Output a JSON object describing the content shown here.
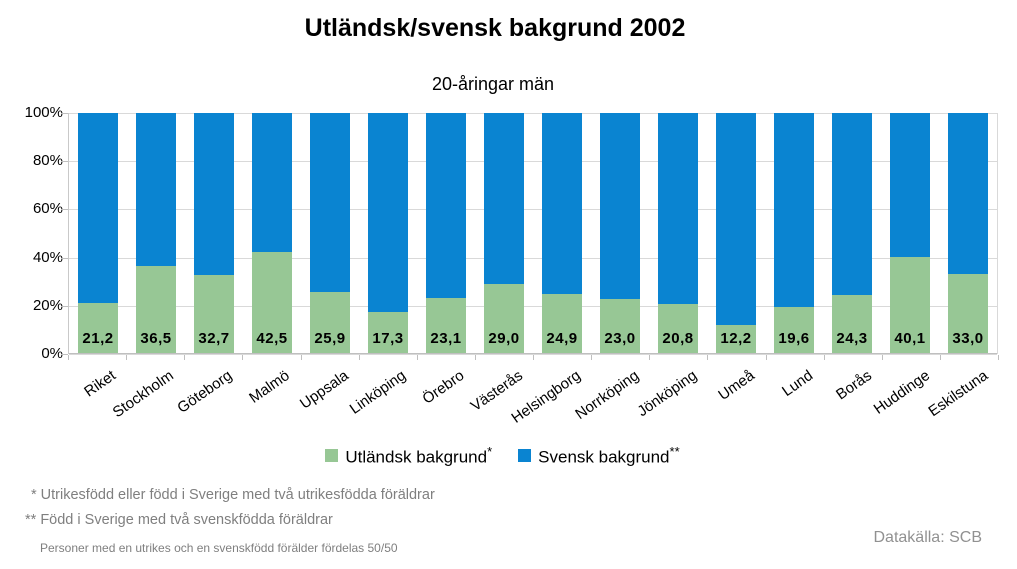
{
  "chart": {
    "title": "Utländsk/svensk bakgrund 2002",
    "subtitle": "20-åringar män",
    "datasource": "Datakälla: SCB"
  },
  "legend": {
    "foreign_label": "Utländsk bakgrund",
    "foreign_marker": "*",
    "swedish_label": "Svensk bakgrund",
    "swedish_marker": "**"
  },
  "footnotes": {
    "line1": "* Utrikesfödd eller född i Sverige med två utrikesfödda föräldrar",
    "line2": "** Född i Sverige med två svenskfödda föräldrar",
    "line3": "Personer med en utrikes och en svenskfödd förälder fördelas 50/50"
  },
  "colors": {
    "foreign_green": "#97c795",
    "swedish_blue": "#0a84d1",
    "gridline": "#d9d9d9",
    "footnote_gray": "#7f7f7f"
  },
  "chart_data": {
    "type": "bar",
    "stacked": true,
    "percent_stacked": true,
    "title": "Utländsk/svensk bakgrund 2002",
    "subtitle": "20-åringar män",
    "categories": [
      "Riket",
      "Stockholm",
      "Göteborg",
      "Malmö",
      "Uppsala",
      "Linköping",
      "Örebro",
      "Västerås",
      "Helsingborg",
      "Norrköping",
      "Jönköping",
      "Umeå",
      "Lund",
      "Borås",
      "Huddinge",
      "Eskilstuna"
    ],
    "series": [
      {
        "name": "Utländsk bakgrund",
        "color": "#97c795",
        "values": [
          21.2,
          36.5,
          32.7,
          42.5,
          25.9,
          17.3,
          23.1,
          29.0,
          24.9,
          23.0,
          20.8,
          12.2,
          19.6,
          24.3,
          40.1,
          33.0
        ],
        "value_labels": [
          "21,2",
          "36,5",
          "32,7",
          "42,5",
          "25,9",
          "17,3",
          "23,1",
          "29,0",
          "24,9",
          "23,0",
          "20,8",
          "12,2",
          "19,6",
          "24,3",
          "40,1",
          "33,0"
        ]
      },
      {
        "name": "Svensk bakgrund",
        "color": "#0a84d1",
        "values": [
          78.8,
          63.5,
          67.3,
          57.5,
          74.1,
          82.7,
          76.9,
          71.0,
          75.1,
          77.0,
          79.2,
          87.8,
          80.4,
          75.7,
          59.9,
          67.0
        ]
      }
    ],
    "xlabel": "",
    "ylabel": "",
    "ylim": [
      0,
      100
    ],
    "ytick_labels": [
      "0%",
      "20%",
      "40%",
      "60%",
      "80%",
      "100%"
    ],
    "grid": true,
    "legend_position": "bottom"
  }
}
